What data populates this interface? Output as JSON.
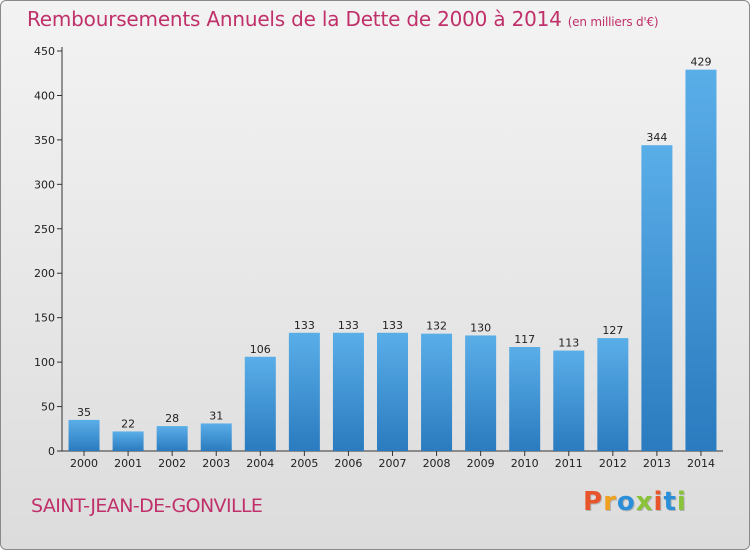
{
  "title": "Remboursements Annuels de la Dette de 2000 à 2014",
  "subtitle": "(en milliers d'€)",
  "town": "SAINT-JEAN-DE-GONVILLE",
  "logo": {
    "text": "Proxiti",
    "colors": [
      "#e8552a",
      "#f0a020",
      "#2a8fd8",
      "#8ac23a",
      "#e8552a",
      "#2a8fd8",
      "#8ac23a"
    ]
  },
  "colors": {
    "title": "#c0306a",
    "bar_top": "#5aaee8",
    "bar_bottom": "#2a7bbf"
  },
  "chart_data": {
    "type": "bar",
    "categories": [
      "2000",
      "2001",
      "2002",
      "2003",
      "2004",
      "2005",
      "2006",
      "2007",
      "2008",
      "2009",
      "2010",
      "2011",
      "2012",
      "2013",
      "2014"
    ],
    "values": [
      35,
      22,
      28,
      31,
      106,
      133,
      133,
      133,
      132,
      130,
      117,
      113,
      127,
      344,
      429
    ],
    "title": "Remboursements Annuels de la Dette de 2000 à 2014",
    "xlabel": "",
    "ylabel": "",
    "ylim": [
      0,
      450
    ],
    "yticks": [
      0,
      50,
      100,
      150,
      200,
      250,
      300,
      350,
      400,
      450
    ],
    "grid": false,
    "legend": "none"
  }
}
